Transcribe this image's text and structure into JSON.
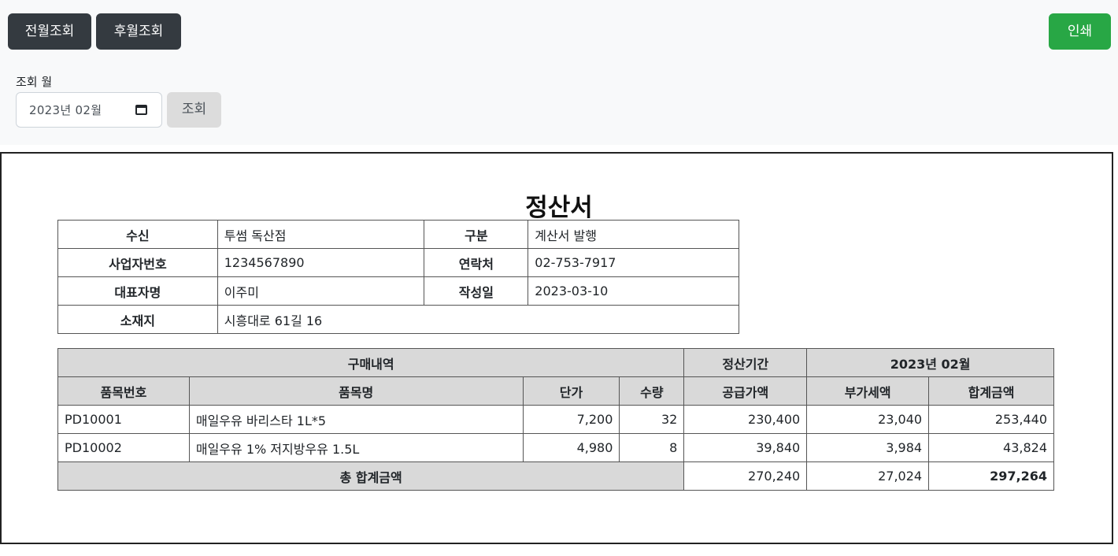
{
  "toolbar": {
    "prev_label": "전월조회",
    "next_label": "후월조회",
    "print_label": "인쇄",
    "colors": {
      "dark": "#343a40",
      "print": "#28a745"
    }
  },
  "filter": {
    "month_label": "조회 월",
    "month_value": "2023년 02월",
    "calendar_icon": "calendar-icon",
    "search_label": "조회"
  },
  "doc": {
    "title": "정산서",
    "info": {
      "recipient_label": "수신",
      "recipient": "투썸 독산점",
      "type_label": "구분",
      "type": "계산서 발행",
      "bizno_label": "사업자번호",
      "bizno": "1234567890",
      "contact_label": "연락처",
      "contact": "02-753-7917",
      "ceo_label": "대표자명",
      "ceo": "이주미",
      "date_label": "작성일",
      "date": "2023-03-10",
      "address_label": "소재지",
      "address": "시흥대로 61길 16"
    },
    "purchase": {
      "title": "구매내역",
      "period_label": "정산기간",
      "period": "2023년 02월",
      "columns": [
        "품목번호",
        "품목명",
        "단가",
        "수량",
        "공급가액",
        "부가세액",
        "합계금액"
      ],
      "rows": [
        [
          "PD10001",
          "매일우유 바리스타 1L*5",
          "7,200",
          "32",
          "230,400",
          "23,040",
          "253,440"
        ],
        [
          "PD10002",
          "매일우유 1% 저지방우유 1.5L",
          "4,980",
          "8",
          "39,840",
          "3,984",
          "43,824"
        ]
      ],
      "total_label": "총 합계금액",
      "total_supply": "270,240",
      "total_vat": "27,024",
      "total_sum": "297,264"
    }
  }
}
